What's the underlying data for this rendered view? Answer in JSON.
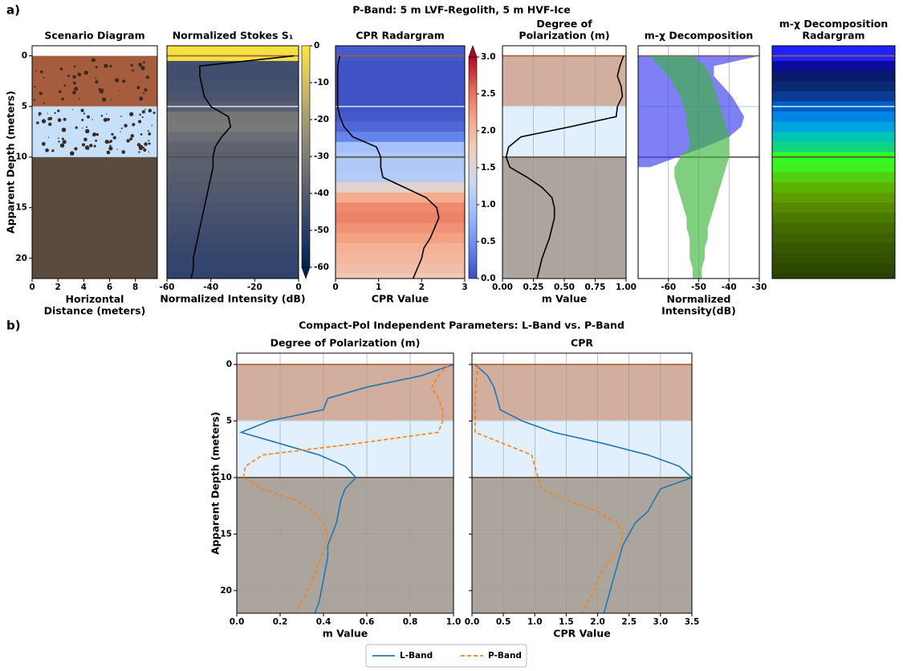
{
  "panels": [
    {
      "label": "a)",
      "title": "P-Band: 5 m LVF-Regolith, 5 m HVF-Ice"
    },
    {
      "label": "b)",
      "title": "Compact-Pol Independent Parameters: L-Band vs. P-Band"
    }
  ],
  "layers": [
    {
      "top": 0,
      "bottom": 5,
      "color": "#a65d3d"
    },
    {
      "top": 5,
      "bottom": 10,
      "color": "#c6e0fa"
    },
    {
      "top": 10,
      "bottom": 22,
      "color": "#5a4b3e"
    }
  ],
  "chart_data": [
    {
      "type": "diagram",
      "title": "Scenario Diagram",
      "xlabel": "Horizontal\nDistance (meters)",
      "ylabel": "Apparent Depth (meters)",
      "xlim": [
        0,
        9.7
      ],
      "xticks": [
        0,
        2,
        4,
        6,
        8
      ],
      "ylim": [
        22,
        -1
      ],
      "yticks": [
        0,
        5,
        10,
        15,
        20
      ]
    },
    {
      "type": "heatline",
      "title": "Normalized Stokes S₁",
      "xlabel": "Normalized Intensity (dB)",
      "xlim": [
        -60,
        0
      ],
      "xticks": [
        -60,
        -40,
        -20,
        0
      ],
      "ylim": [
        22,
        -1
      ],
      "y": [
        0,
        1,
        2,
        3,
        4,
        5,
        6,
        7,
        8,
        9,
        10,
        11,
        12,
        13,
        14,
        15,
        16,
        17,
        18,
        19,
        20,
        21,
        22
      ],
      "values": [
        -2,
        -45,
        -45,
        -44,
        -43,
        -40,
        -32,
        -31,
        -35,
        -38,
        -39,
        -39,
        -40,
        -41,
        -42,
        -43,
        -44,
        -45,
        -46,
        -47,
        -48,
        -48,
        -49
      ],
      "line_color": "#000000",
      "colormap": [
        "#00224e",
        "#2a3f6c",
        "#575d6d",
        "#7d7c78",
        "#a59c74",
        "#d3c064",
        "#fee838"
      ],
      "clim": [
        -60,
        0
      ],
      "cticks": [
        0,
        -10,
        -20,
        -30,
        -40,
        -50,
        -60
      ],
      "extend": "min"
    },
    {
      "type": "heatline",
      "title": "CPR Radargram",
      "xlabel": "CPR Value",
      "xlim": [
        0,
        3
      ],
      "xticks": [
        0,
        1,
        2,
        3
      ],
      "ylim": [
        22,
        -1
      ],
      "y": [
        0,
        1,
        2,
        3,
        4,
        5,
        6,
        7,
        8,
        9,
        10,
        11,
        12,
        13,
        14,
        15,
        16,
        17,
        18,
        19,
        20,
        21,
        22
      ],
      "values": [
        0.1,
        0.05,
        0.05,
        0.05,
        0.05,
        0.05,
        0.1,
        0.2,
        0.4,
        0.95,
        1.05,
        1.05,
        1.1,
        1.6,
        2.1,
        2.35,
        2.4,
        2.3,
        2.2,
        2.05,
        2.0,
        1.9,
        1.8
      ],
      "line_color": "#000000",
      "colormap": [
        "#3b4cc0",
        "#6788ee",
        "#9abbff",
        "#c9d7f0",
        "#edd1c2",
        "#f7a889",
        "#e26952",
        "#b40426"
      ],
      "clim": [
        0,
        3
      ],
      "cticks": [
        {
          "value": 0,
          "label": "0.0"
        },
        0.5,
        {
          "value": 1,
          "label": "1.0"
        },
        1.5,
        {
          "value": 2,
          "label": "2.0"
        },
        2.5,
        {
          "value": 3,
          "label": "3.0"
        }
      ],
      "extend": "max"
    },
    {
      "type": "layerline",
      "title": "Degree of\nPolarization (m)",
      "xlabel": "m Value",
      "xlim": [
        0,
        1
      ],
      "xticks": [
        {
          "value": 0,
          "label": "0.00"
        },
        0.25,
        {
          "value": 0.5,
          "label": "0.50"
        },
        0.75,
        {
          "value": 1,
          "label": "1.00"
        }
      ],
      "ylim": [
        22,
        -1
      ],
      "grid": true,
      "layer_opacity": 0.5,
      "y": [
        0,
        1,
        2,
        3,
        4,
        5,
        6,
        7,
        8,
        9,
        10,
        11,
        12,
        13,
        14,
        15,
        16,
        17,
        18,
        19,
        20,
        21,
        22
      ],
      "values": [
        0.98,
        0.95,
        0.93,
        0.96,
        0.97,
        0.93,
        0.92,
        0.55,
        0.15,
        0.05,
        0.03,
        0.06,
        0.2,
        0.32,
        0.4,
        0.42,
        0.42,
        0.4,
        0.38,
        0.35,
        0.32,
        0.3,
        0.28
      ],
      "line_color": "#000000"
    },
    {
      "type": "band",
      "title": "m-χ Decomposition",
      "xlabel": "Normalized\nIntensity(dB)",
      "xlim": [
        -70,
        -30
      ],
      "xticks": [
        -60,
        -50,
        -40,
        -30
      ],
      "ylim": [
        22,
        -1
      ],
      "grid": true,
      "y": [
        0,
        1,
        2,
        3,
        4,
        5,
        6,
        7,
        8,
        9,
        10,
        11,
        12,
        13,
        14,
        15,
        16,
        17,
        18,
        19,
        20,
        21,
        22
      ],
      "series": [
        {
          "color": "#3c3cf0",
          "lower": [
            -70,
            -70,
            -70,
            -70,
            -70,
            -70,
            -70,
            -70,
            -70,
            -70,
            -70,
            -70,
            null,
            null,
            null,
            null,
            null,
            null,
            null,
            null,
            null,
            null,
            null
          ],
          "upper": [
            -30,
            -45,
            -45,
            -42,
            -39,
            -37,
            -35,
            -36,
            -40,
            -48,
            -57,
            -66,
            null,
            null,
            null,
            null,
            null,
            null,
            null,
            null,
            null,
            null,
            null
          ]
        },
        {
          "color": "#3cb43c",
          "lower": [
            -66,
            -63,
            -60,
            -58,
            -56,
            -55,
            -54,
            -54,
            -53,
            -53,
            -56,
            -58,
            -58,
            -57,
            -56,
            -55,
            -54,
            -54,
            -53,
            -53,
            -53,
            -52,
            -52
          ],
          "upper": [
            -52,
            -48,
            -46,
            -45,
            -44,
            -43,
            -42,
            -41,
            -40,
            -40,
            -40,
            -41,
            -42,
            -43,
            -44,
            -45,
            -46,
            -47,
            -47,
            -48,
            -48,
            -49,
            -49
          ]
        }
      ]
    },
    {
      "type": "strips",
      "title": "m-χ Decomposition\nRadargram",
      "ylim": [
        22,
        -1
      ],
      "y": [
        0,
        1,
        2,
        3,
        4,
        5,
        6,
        7,
        8,
        9,
        10,
        11,
        12,
        13,
        14,
        15,
        16,
        17,
        18,
        19,
        20,
        21,
        22
      ],
      "colors": [
        "#1e22ff",
        "#0c0c9c",
        "#081a6c",
        "#0a2a74",
        "#0a3c94",
        "#0060c4",
        "#0084e4",
        "#00a4e0",
        "#00c4b4",
        "#10d484",
        "#30ff20",
        "#40f020",
        "#50d010",
        "#5cb400",
        "#5e9c00",
        "#558a00",
        "#4a7a00",
        "#446c00",
        "#3e6200",
        "#385800",
        "#325000",
        "#2c4800",
        "#284000"
      ]
    },
    {
      "type": "line",
      "title": "Degree of Polarization (m)",
      "xlabel": "m Value",
      "ylabel": "Apparent Depth (meters)",
      "xlim": [
        0,
        1
      ],
      "xticks": [
        {
          "value": 0,
          "label": "0.0"
        },
        0.2,
        0.4,
        0.6,
        0.8,
        {
          "value": 1,
          "label": "1.0"
        }
      ],
      "ylim": [
        22,
        -1
      ],
      "yticks": [
        0,
        5,
        10,
        15,
        20
      ],
      "grid": true,
      "layer_opacity": 0.5,
      "legend": "lower center",
      "y": [
        0,
        1,
        2,
        3,
        4,
        5,
        6,
        7,
        8,
        9,
        10,
        11,
        12,
        13,
        14,
        15,
        16,
        17,
        18,
        19,
        20,
        21,
        22
      ],
      "series": [
        {
          "name": "L-Band",
          "color": "#1f77b4",
          "line_style": "solid",
          "values": [
            1.0,
            0.85,
            0.6,
            0.42,
            0.4,
            0.15,
            0.02,
            0.2,
            0.38,
            0.5,
            0.55,
            0.5,
            0.48,
            0.47,
            0.46,
            0.44,
            0.42,
            0.42,
            0.41,
            0.4,
            0.39,
            0.38,
            0.36
          ]
        },
        {
          "name": "P-Band",
          "color": "#ff7f0e",
          "line_style": "dashed",
          "values": [
            0.98,
            0.93,
            0.9,
            0.93,
            0.95,
            0.95,
            0.93,
            0.55,
            0.12,
            0.04,
            0.03,
            0.12,
            0.27,
            0.35,
            0.4,
            0.42,
            0.41,
            0.39,
            0.37,
            0.35,
            0.33,
            0.3,
            0.27
          ]
        }
      ]
    },
    {
      "type": "line",
      "title": "CPR",
      "xlabel": "CPR Value",
      "xlim": [
        0,
        3.5
      ],
      "xticks": [
        {
          "value": 0,
          "label": "0.0"
        },
        0.5,
        {
          "value": 1,
          "label": "1.0"
        },
        1.5,
        {
          "value": 2,
          "label": "2.0"
        },
        2.5,
        {
          "value": 3,
          "label": "3.0"
        },
        3.5
      ],
      "ylim": [
        22,
        -1
      ],
      "yticks": [
        0,
        5,
        10,
        15,
        20
      ],
      "grid": true,
      "layer_opacity": 0.5,
      "y": [
        0,
        1,
        2,
        3,
        4,
        5,
        6,
        7,
        8,
        9,
        10,
        11,
        12,
        13,
        14,
        15,
        16,
        17,
        18,
        19,
        20,
        21,
        22
      ],
      "series": [
        {
          "color": "#1f77b4",
          "line_style": "solid",
          "values": [
            0.05,
            0.25,
            0.35,
            0.4,
            0.45,
            0.8,
            1.3,
            2.1,
            2.8,
            3.3,
            3.5,
            3.0,
            2.9,
            2.8,
            2.6,
            2.5,
            2.4,
            2.35,
            2.3,
            2.25,
            2.2,
            2.15,
            2.1
          ]
        },
        {
          "color": "#ff7f0e",
          "line_style": "dashed",
          "values": [
            0.1,
            0.08,
            0.06,
            0.05,
            0.05,
            0.05,
            0.05,
            0.5,
            0.95,
            1.0,
            1.05,
            1.1,
            1.5,
            2.0,
            2.3,
            2.4,
            2.35,
            2.25,
            2.1,
            2.0,
            1.95,
            1.85,
            1.75
          ]
        }
      ]
    }
  ]
}
